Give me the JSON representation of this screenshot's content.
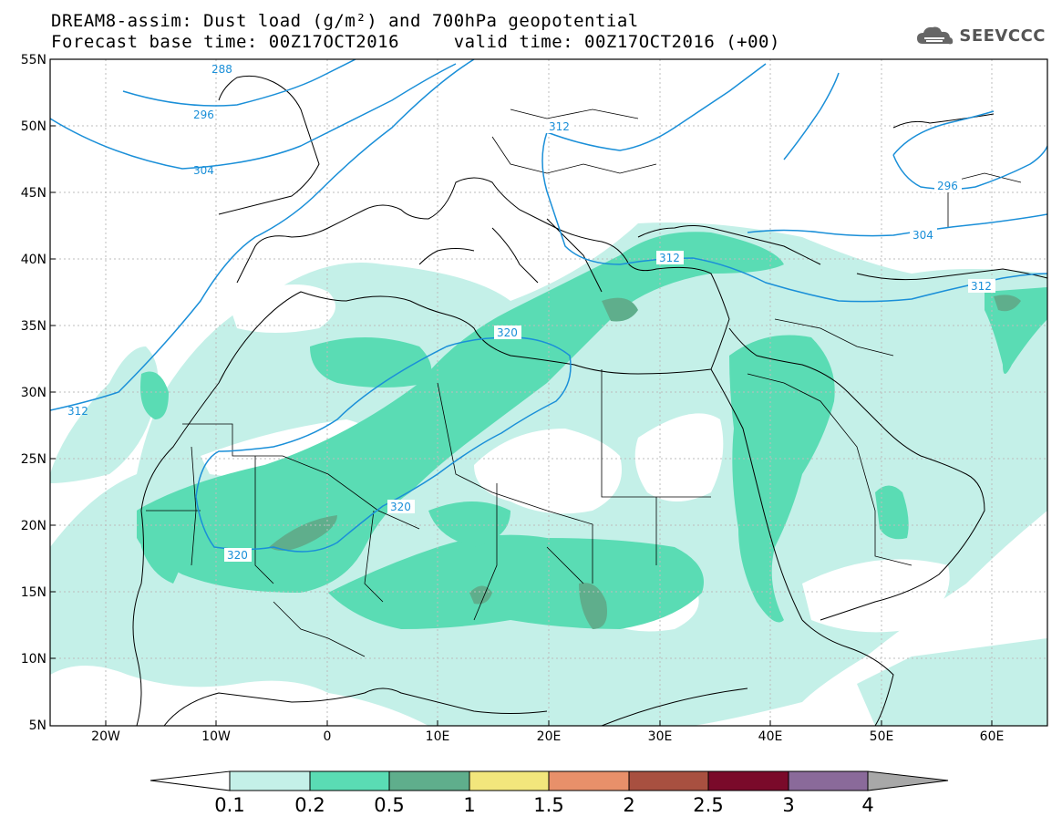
{
  "header": {
    "title_line1": "DREAM8-assim: Dust load (g/m²) and 700hPa geopotential",
    "title_line2": "Forecast base time: 00Z17OCT2016     valid time: 00Z17OCT2016 (+00)",
    "brand": "SEEVCCC",
    "brand_icon": "cloud-logo-icon"
  },
  "map": {
    "lat_labels": [
      "55N",
      "50N",
      "45N",
      "40N",
      "35N",
      "30N",
      "25N",
      "20N",
      "15N",
      "10N",
      "5N"
    ],
    "lon_labels": [
      "20W",
      "10W",
      "0",
      "10E",
      "20E",
      "30E",
      "40E",
      "50E",
      "60E"
    ],
    "contour_labels": [
      "288",
      "296",
      "304",
      "312",
      "320",
      "320",
      "320",
      "312",
      "312",
      "296",
      "304",
      "312"
    ],
    "colors": {
      "contour": "#1a8fd8",
      "coast": "#000000",
      "dust_0_1": "#c4f0e8",
      "dust_0_2": "#5adcb4",
      "dust_0_5": "#5fae8c"
    }
  },
  "colorbar": {
    "labels": [
      "0.1",
      "0.2",
      "0.5",
      "1",
      "1.5",
      "2",
      "2.5",
      "3",
      "4"
    ],
    "colors": [
      "#c4f0e8",
      "#5adcb4",
      "#5fae8c",
      "#f2e67c",
      "#e8906a",
      "#a85040",
      "#7a0a2a",
      "#8a6a9a",
      "#a8a8a8"
    ]
  }
}
